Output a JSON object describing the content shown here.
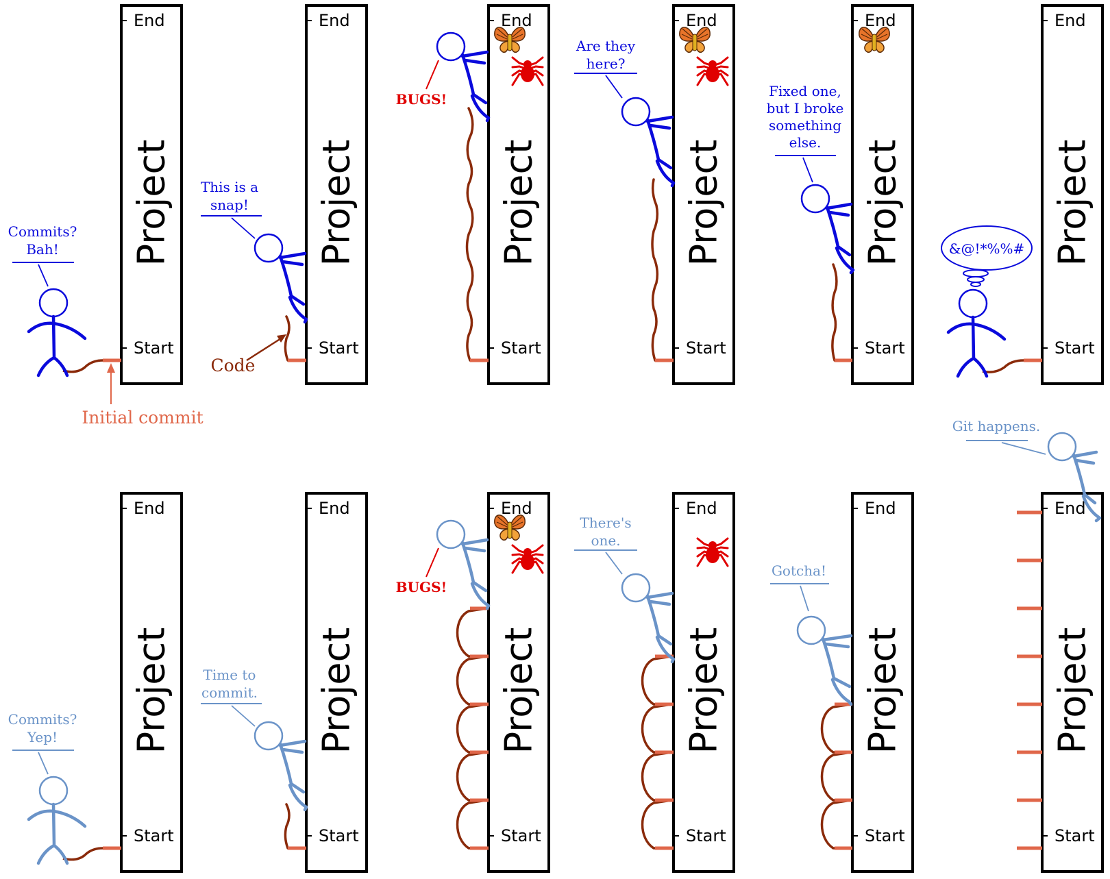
{
  "colors": {
    "person_top": "#0a0adc",
    "person_bottom": "#6a93c8",
    "code": "#8a2a0a",
    "commit": "#e0674a",
    "bug": "#e00000",
    "frame": "#000000"
  },
  "icons": [
    "butterfly-icon",
    "spider-icon"
  ],
  "pillar": {
    "title": "Project",
    "end_label": "End",
    "start_label": "Start"
  },
  "top_row": {
    "panel1": {
      "speech": [
        "Commits?",
        "Bah!"
      ]
    },
    "panel2": {
      "speech": [
        "This is a",
        "snap!"
      ]
    },
    "panel3": {
      "exclaim": "BUGS!"
    },
    "panel4": {
      "speech": [
        "Are they",
        "here?"
      ]
    },
    "panel5": {
      "speech": [
        "Fixed one,",
        "but I broke",
        "something",
        "else."
      ]
    },
    "panel6": {
      "thought": "&@!*%%#"
    }
  },
  "bottom_row": {
    "panel1": {
      "speech": [
        "Commits?",
        "Yep!"
      ]
    },
    "panel2": {
      "speech": [
        "Time to",
        "commit."
      ]
    },
    "panel3": {
      "exclaim": "BUGS!"
    },
    "panel4": {
      "speech": [
        "There's",
        "one."
      ]
    },
    "panel5": {
      "speech": [
        "Gotcha!"
      ]
    },
    "panel6": {
      "speech": [
        "Git happens."
      ]
    }
  },
  "annotations": {
    "code": "Code",
    "initial_commit": "Initial commit"
  }
}
